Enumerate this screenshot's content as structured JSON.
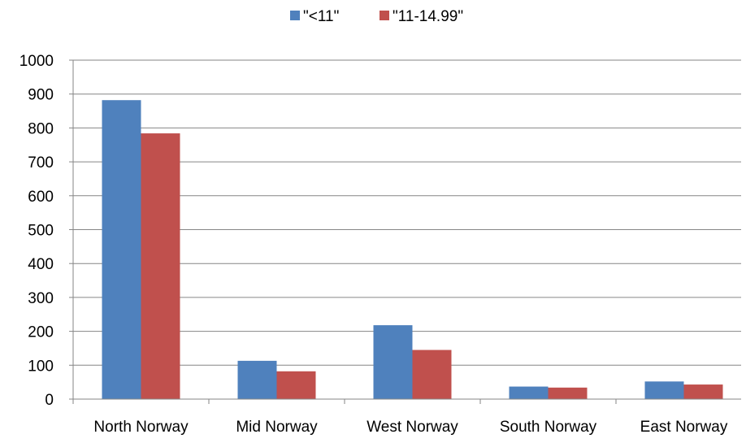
{
  "chart_data": {
    "type": "bar",
    "title": "",
    "xlabel": "",
    "ylabel": "",
    "categories": [
      "North Norway",
      "Mid Norway",
      "West Norway",
      "South Norway",
      "East Norway"
    ],
    "series": [
      {
        "name": "\"<11\"",
        "color": "#4F81BD",
        "values": [
          882,
          113,
          218,
          37,
          52
        ]
      },
      {
        "name": "\"11-14.99\"",
        "color": "#C0504D",
        "values": [
          784,
          82,
          145,
          34,
          43
        ]
      }
    ],
    "ylim": [
      0,
      1000
    ],
    "yticks": [
      "0",
      "100",
      "200",
      "300",
      "400",
      "500",
      "600",
      "700",
      "800",
      "900",
      "1000"
    ],
    "grid": true,
    "legend_position": "top-center"
  }
}
